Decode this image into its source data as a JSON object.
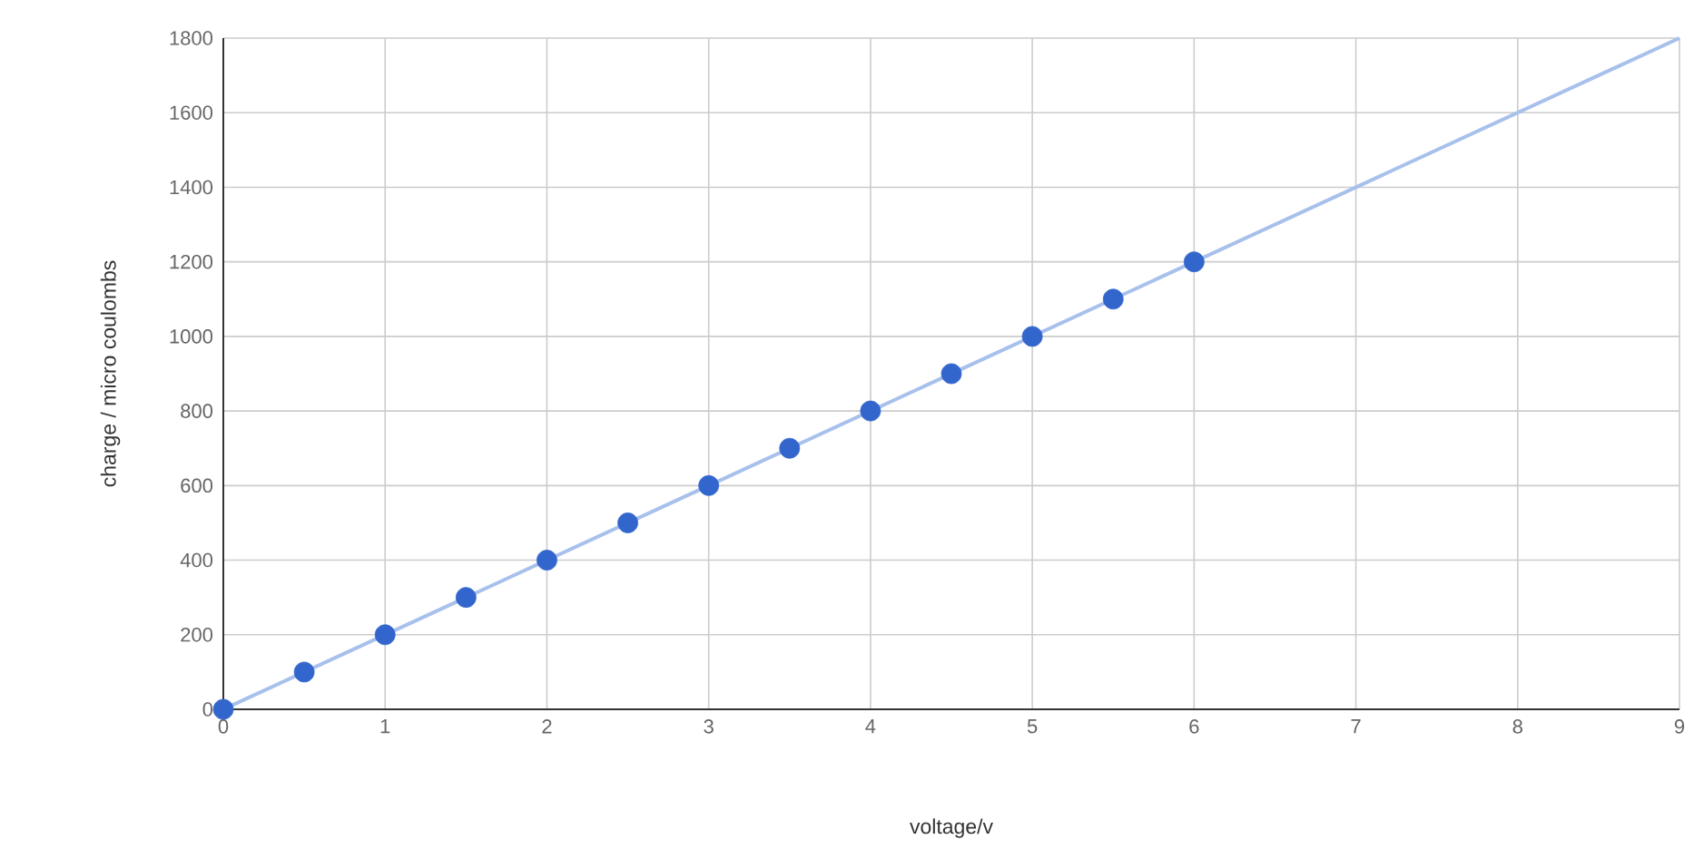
{
  "chart_data": {
    "type": "scatter",
    "xlabel": "voltage/v",
    "ylabel": "charge / micro coulombs",
    "xlim": [
      0,
      9
    ],
    "ylim": [
      0,
      1800
    ],
    "xticks": [
      0,
      1,
      2,
      3,
      4,
      5,
      6,
      7,
      8,
      9
    ],
    "yticks": [
      0,
      200,
      400,
      600,
      800,
      1000,
      1200,
      1400,
      1600,
      1800
    ],
    "grid": true,
    "marker": "circle",
    "series": [
      {
        "type": "line",
        "color": "#a8c0ec",
        "x": [
          0,
          9
        ],
        "values": [
          0,
          1800
        ],
        "marker": "none",
        "line_style": "solid"
      },
      {
        "color": "#3366cc",
        "x": [
          0,
          0.5,
          1,
          1.5,
          2,
          2.5,
          3,
          3.5,
          4,
          4.5,
          5,
          5.5,
          6
        ],
        "values": [
          0,
          100,
          200,
          300,
          400,
          500,
          600,
          700,
          800,
          900,
          1000,
          1100,
          1200
        ]
      }
    ]
  }
}
